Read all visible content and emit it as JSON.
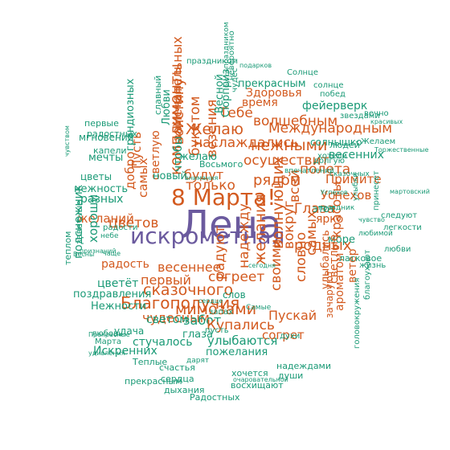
{
  "colors": {
    "primary": "#6b5a9e",
    "accent": "#d35a1f",
    "secondary": "#1a9a76",
    "background": "#ffffff"
  },
  "word_cloud": {
    "center_word": "Лена",
    "words": [
      "Лена",
      "искрометная",
      "8 Марта!",
      "рядом",
      "Примите",
      "Успехов",
      "Глаза",
      "ярко",
      "родных",
      "Желаю",
      "Международным",
      "наслаждались",
      "осуществит",
      "нежными",
      "волшебным",
      "весенних",
      "солнышко",
      "людей",
      "будут",
      "только",
      "комплименты",
      "Пусть",
      "самых",
      "светлую",
      "добро",
      "грандиозных",
      "цветов",
      "желаний",
      "разных",
      "нежность",
      "цветы",
      "мгновений",
      "радость",
      "весеннее",
      "первый",
      "согреет",
      "сказочного",
      "цветёт",
      "поздравления",
      "Благополучия",
      "чудесным",
      "мимозами",
      "светом",
      "забот",
      "Купались",
      "глаза",
      "Искренних",
      "Нежности",
      "удача",
      "стучалось",
      "улыбаются",
      "пожелания",
      "Пускай",
      "согрет",
      "слов",
      "сердца",
      "дыхания",
      "хочется",
      "восхищают",
      "Радостных",
      "прекрасным",
      "теплом",
      "подснежник",
      "хороши",
      "новый",
      "полета",
      "желания",
      "волнующих",
      "всей",
      "вокруг",
      "своими",
      "надежду",
      "радуют",
      "самых",
      "словно",
      "красоты",
      "море",
      "этот",
      "улыбались",
      "светлые",
      "ароматом",
      "ветер",
      "зачаруют",
      "ласковое",
      "жизнь",
      "благоухают",
      "головокружения",
      "принесет",
      "следуют",
      "легкости",
      "любви",
      "Желаем",
      "Торжественные",
      "мартовский",
      "вечно",
      "звездами",
      "красивых",
      "побед",
      "фейерверк",
      "солнце",
      "Солнце",
      "подарков",
      "праздником",
      "невероятно",
      "Здоровья",
      "прекрасным",
      "время",
      "Тебе",
      "замечательных",
      "букетом",
      "везения",
      "войстину",
      "Любви",
      "чтобы",
      "славный",
      "мечты",
      "первые",
      "радостных",
      "капели",
      "желаю",
      "Весной",
      "Сюрприз",
      "чудес",
      "счастья",
      "Теплые",
      "любовь",
      "Марта",
      "удивления",
      "Весны",
      "чаще",
      "небе",
      "заветные",
      "запах",
      "духи",
      "дарят",
      "надеждами",
      "души",
      "очаровательной",
      "Самые",
      "сердце",
      "сегодня",
      "Успехов",
      "внимания",
      "пусть",
      "сказочных",
      "хотели",
      "долгую",
      "Восьмого",
      "впечатлений",
      "праздник",
      "улыбки",
      "радости",
      "любимой",
      "чувством",
      "признаний",
      "Прекрасные",
      "праздником",
      "чувство",
      "бутон"
    ]
  }
}
